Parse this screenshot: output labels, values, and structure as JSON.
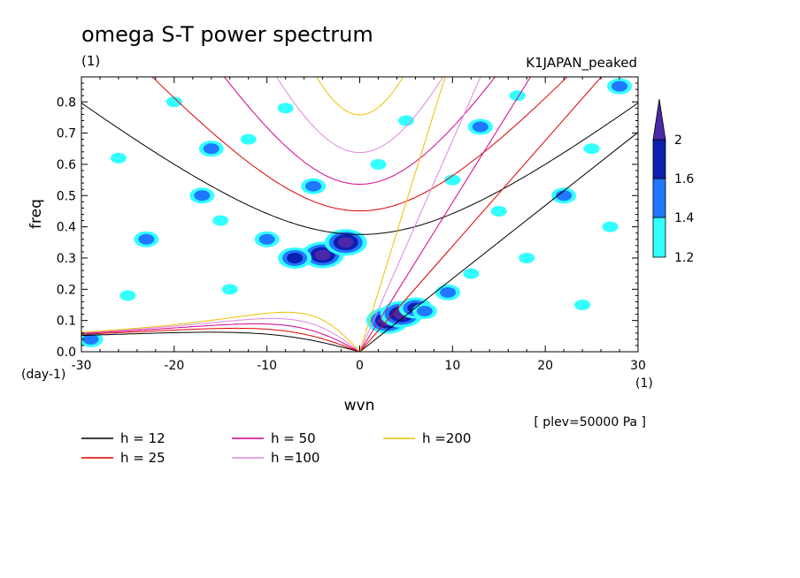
{
  "figure": {
    "title": "omega S-T power spectrum",
    "units_left": "(1)",
    "experiment": "K1JAPAN_peaked",
    "level_note": "[ plev=50000 Pa ]"
  },
  "chart_data": {
    "type": "heatmap",
    "xlabel": "wvn",
    "ylabel": "freq",
    "x_units": "(1)",
    "y_units": "(day-1)",
    "xlim": [
      -30,
      30
    ],
    "ylim": [
      0,
      0.88
    ],
    "x_ticks": [
      -30,
      -20,
      -10,
      0,
      10,
      20,
      30
    ],
    "x_tick_labels": [
      "-30",
      "-20",
      "-10",
      "0",
      "10",
      "20",
      "30"
    ],
    "y_ticks": [
      0.0,
      0.1,
      0.2,
      0.3,
      0.4,
      0.5,
      0.6,
      0.7,
      0.8
    ],
    "y_tick_labels": [
      "0.0",
      "0.1",
      "0.2",
      "0.3",
      "0.4",
      "0.5",
      "0.6",
      "0.7",
      "0.8"
    ],
    "colorbar": {
      "levels": [
        "1.2",
        "1.4",
        "1.6",
        "2"
      ],
      "colors": [
        "#33ffff",
        "#1f78ff",
        "#0b1fb0",
        "#4b28a8"
      ]
    },
    "dispersion_curves": [
      {
        "label": "h = 12",
        "h": 12,
        "color": "#000000"
      },
      {
        "label": "h = 25",
        "h": 25,
        "color": "#dd0000"
      },
      {
        "label": "h = 50",
        "h": 50,
        "color": "#d4008c"
      },
      {
        "label": "h =100",
        "h": 100,
        "color": "#dd88dd"
      },
      {
        "label": "h =200",
        "h": 200,
        "color": "#eec000"
      }
    ],
    "power_blobs": [
      {
        "x": 3,
        "y": 0.1,
        "level": 4
      },
      {
        "x": 4.5,
        "y": 0.12,
        "level": 4
      },
      {
        "x": 6,
        "y": 0.14,
        "level": 3
      },
      {
        "x": 7,
        "y": 0.13,
        "level": 2
      },
      {
        "x": 9.5,
        "y": 0.19,
        "level": 2
      },
      {
        "x": 12,
        "y": 0.25,
        "level": 1
      },
      {
        "x": -4,
        "y": 0.31,
        "level": 4
      },
      {
        "x": -1.5,
        "y": 0.35,
        "level": 4
      },
      {
        "x": -7,
        "y": 0.3,
        "level": 3
      },
      {
        "x": -10,
        "y": 0.36,
        "level": 2
      },
      {
        "x": -5,
        "y": 0.53,
        "level": 2
      },
      {
        "x": -16,
        "y": 0.65,
        "level": 2
      },
      {
        "x": -17,
        "y": 0.5,
        "level": 2
      },
      {
        "x": -15,
        "y": 0.42,
        "level": 1
      },
      {
        "x": -23,
        "y": 0.36,
        "level": 2
      },
      {
        "x": -29,
        "y": 0.04,
        "level": 2
      },
      {
        "x": 13,
        "y": 0.72,
        "level": 2
      },
      {
        "x": 22,
        "y": 0.5,
        "level": 2
      },
      {
        "x": 27,
        "y": 0.4,
        "level": 1
      },
      {
        "x": 25,
        "y": 0.65,
        "level": 1
      },
      {
        "x": -20,
        "y": 0.8,
        "level": 1
      },
      {
        "x": 5,
        "y": 0.74,
        "level": 1
      },
      {
        "x": 10,
        "y": 0.55,
        "level": 1
      },
      {
        "x": -25,
        "y": 0.18,
        "level": 1
      },
      {
        "x": -14,
        "y": 0.2,
        "level": 1
      },
      {
        "x": 18,
        "y": 0.3,
        "level": 1
      },
      {
        "x": 24,
        "y": 0.15,
        "level": 1
      },
      {
        "x": -8,
        "y": 0.78,
        "level": 1
      },
      {
        "x": 2,
        "y": 0.6,
        "level": 1
      },
      {
        "x": 17,
        "y": 0.82,
        "level": 1
      },
      {
        "x": -26,
        "y": 0.62,
        "level": 1
      },
      {
        "x": 28,
        "y": 0.85,
        "level": 2
      },
      {
        "x": -12,
        "y": 0.68,
        "level": 1
      },
      {
        "x": 15,
        "y": 0.45,
        "level": 1
      }
    ]
  }
}
